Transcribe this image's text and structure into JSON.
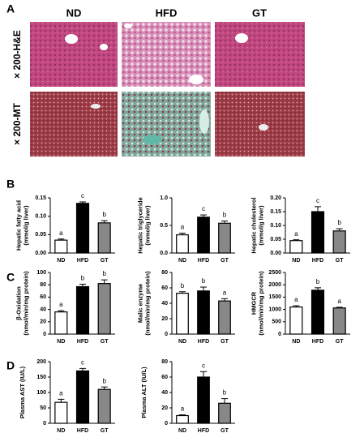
{
  "panel_a": {
    "label": "A",
    "columns": [
      "ND",
      "HFD",
      "GT"
    ],
    "rows": [
      "× 200-H&E",
      "× 200-MT"
    ]
  },
  "panel_labels": [
    "B",
    "C",
    "D"
  ],
  "chart_data": [
    {
      "type": "bar",
      "ylabel": [
        "Hepatic fatty acid",
        "(mmol/g liver)"
      ],
      "categories": [
        "ND",
        "HFD",
        "GT"
      ],
      "values": [
        0.035,
        0.135,
        0.082
      ],
      "errors": [
        0.003,
        0.004,
        0.006
      ],
      "letters": [
        "a",
        "c",
        "b"
      ],
      "colors": [
        "#ffffff",
        "#000000",
        "#888888"
      ],
      "ylim": [
        0,
        0.15
      ],
      "yticks": [
        {
          "value": 0,
          "label": "0.00"
        },
        {
          "value": 0.05,
          "label": "0.05"
        },
        {
          "value": 0.1,
          "label": "0.10"
        },
        {
          "value": 0.15,
          "label": "0.15"
        }
      ]
    },
    {
      "type": "bar",
      "ylabel": [
        "Hepatic triglyceride",
        "(mmol/g liver)"
      ],
      "categories": [
        "ND",
        "HFD",
        "GT"
      ],
      "values": [
        0.33,
        0.65,
        0.54
      ],
      "errors": [
        0.03,
        0.04,
        0.04
      ],
      "letters": [
        "a",
        "c",
        "b"
      ],
      "colors": [
        "#ffffff",
        "#000000",
        "#888888"
      ],
      "ylim": [
        0,
        1
      ],
      "yticks": [
        {
          "value": 0,
          "label": "0.0"
        },
        0.5,
        {
          "value": 1,
          "label": "1.0"
        }
      ]
    },
    {
      "type": "bar",
      "ylabel": [
        "Hepatic cholesterol",
        "(mmol/g liver)"
      ],
      "categories": [
        "ND",
        "HFD",
        "GT"
      ],
      "values": [
        0.045,
        0.15,
        0.08
      ],
      "errors": [
        0.003,
        0.018,
        0.008
      ],
      "letters": [
        "a",
        "c",
        "b"
      ],
      "colors": [
        "#ffffff",
        "#000000",
        "#888888"
      ],
      "ylim": [
        0,
        0.2
      ],
      "yticks": [
        {
          "value": 0,
          "label": "0.00"
        },
        0.05,
        {
          "value": 0.1,
          "label": "0.10"
        },
        0.15,
        {
          "value": 0.2,
          "label": "0.20"
        }
      ]
    },
    {
      "type": "bar",
      "ylabel": [
        "β-Oxidation",
        "(nmol/min/mg protein)"
      ],
      "categories": [
        "ND",
        "HFD",
        "GT"
      ],
      "values": [
        36,
        77,
        82
      ],
      "errors": [
        2,
        4,
        6
      ],
      "letters": [
        "a",
        "b",
        "b"
      ],
      "colors": [
        "#ffffff",
        "#000000",
        "#888888"
      ],
      "ylim": [
        0,
        100
      ],
      "yticks": [
        0,
        20,
        40,
        60,
        80,
        100
      ]
    },
    {
      "type": "bar",
      "ylabel": [
        "Malic enzyme",
        "(nmol/min/mg protein)"
      ],
      "categories": [
        "ND",
        "HFD",
        "GT"
      ],
      "values": [
        53,
        56,
        43
      ],
      "errors": [
        2,
        5,
        3
      ],
      "letters": [
        "b",
        "b",
        "a"
      ],
      "colors": [
        "#ffffff",
        "#000000",
        "#888888"
      ],
      "ylim": [
        0,
        80
      ],
      "yticks": [
        0,
        20,
        40,
        60,
        80
      ]
    },
    {
      "type": "bar",
      "ylabel": [
        "HMGCR",
        "(nmol/min/mg protein)"
      ],
      "categories": [
        "ND",
        "HFD",
        "GT"
      ],
      "values": [
        1100,
        1780,
        1060
      ],
      "errors": [
        50,
        100,
        30
      ],
      "letters": [
        "a",
        "b",
        "a"
      ],
      "colors": [
        "#ffffff",
        "#000000",
        "#888888"
      ],
      "ylim": [
        0,
        2500
      ],
      "yticks": [
        0,
        500,
        1000,
        1500,
        2000,
        2500
      ]
    },
    {
      "type": "bar",
      "ylabel": [
        "Plasma AST (IU/L)"
      ],
      "categories": [
        "ND",
        "HFD",
        "GT"
      ],
      "values": [
        68,
        170,
        110
      ],
      "errors": [
        10,
        8,
        8
      ],
      "letters": [
        "a",
        "c",
        "b"
      ],
      "colors": [
        "#ffffff",
        "#000000",
        "#888888"
      ],
      "ylim": [
        0,
        200
      ],
      "yticks": [
        0,
        50,
        100,
        150,
        200
      ]
    },
    {
      "type": "bar",
      "ylabel": [
        "Plasma ALT (IU/L)"
      ],
      "categories": [
        "ND",
        "HFD",
        "GT"
      ],
      "values": [
        10,
        60,
        26
      ],
      "errors": [
        1,
        7,
        6
      ],
      "letters": [
        "a",
        "c",
        "b"
      ],
      "colors": [
        "#ffffff",
        "#000000",
        "#888888"
      ],
      "ylim": [
        0,
        80
      ],
      "yticks": [
        0,
        20,
        40,
        60,
        80
      ]
    }
  ]
}
